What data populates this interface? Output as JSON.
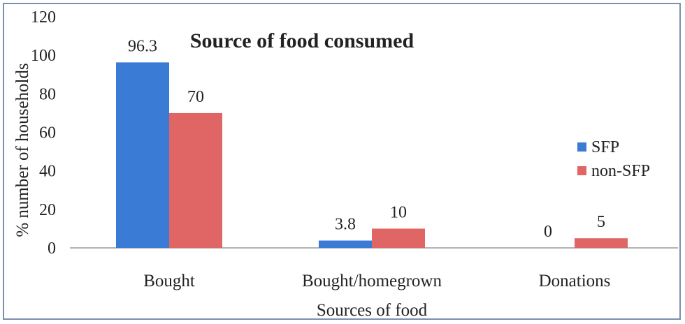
{
  "chart_data": {
    "type": "bar",
    "title": "Source of food consumed",
    "xlabel": "Sources of food",
    "ylabel": "% number of households",
    "categories": [
      "Bought",
      "Bought/homegrown",
      "Donations"
    ],
    "series": [
      {
        "name": "SFP",
        "values": [
          96.3,
          3.8,
          0
        ],
        "labels": [
          "96.3",
          "3.8",
          "0"
        ],
        "color": "#3a7bd5"
      },
      {
        "name": "non-SFP",
        "values": [
          70,
          10,
          5
        ],
        "labels": [
          "70",
          "10",
          "5"
        ],
        "color": "#e06666"
      }
    ],
    "ylim": [
      0,
      120
    ],
    "yticks": [
      0,
      20,
      40,
      60,
      80,
      100,
      120
    ],
    "grid": false,
    "legend_position": "right"
  }
}
